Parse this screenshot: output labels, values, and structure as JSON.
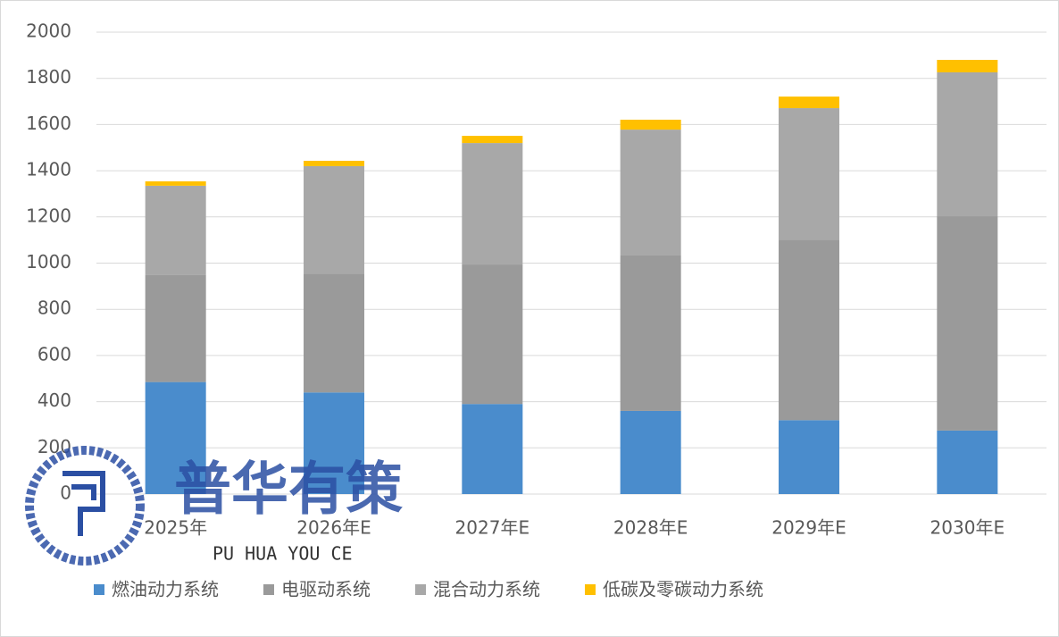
{
  "chart_data": {
    "type": "stacked_bar",
    "categories": [
      "2025年",
      "2026年E",
      "2027年E",
      "2028年E",
      "2029年E",
      "2030年E"
    ],
    "series": [
      {
        "name": "燃油动力系统",
        "color": "#4a8ccc",
        "values": [
          485,
          440,
          390,
          360,
          320,
          275
        ]
      },
      {
        "name": "电驱动系统",
        "color": "#9a9a9a",
        "values": [
          463,
          515,
          604,
          673,
          782,
          928
        ]
      },
      {
        "name": "混合动力系统",
        "color": "#a8a8a8",
        "values": [
          387,
          465,
          526,
          545,
          569,
          623
        ]
      },
      {
        "name": "低碳及零碳动力系统",
        "color": "#ffc000",
        "values": [
          19,
          23,
          31,
          43,
          50,
          54
        ]
      }
    ],
    "ylim": [
      0,
      2000
    ],
    "yticks": [
      0,
      200,
      400,
      600,
      800,
      1000,
      1200,
      1400,
      1600,
      1800,
      2000
    ],
    "grid": true,
    "watermark": {
      "title": "普华有策",
      "subtitle": "PU HUA YOU CE"
    }
  }
}
